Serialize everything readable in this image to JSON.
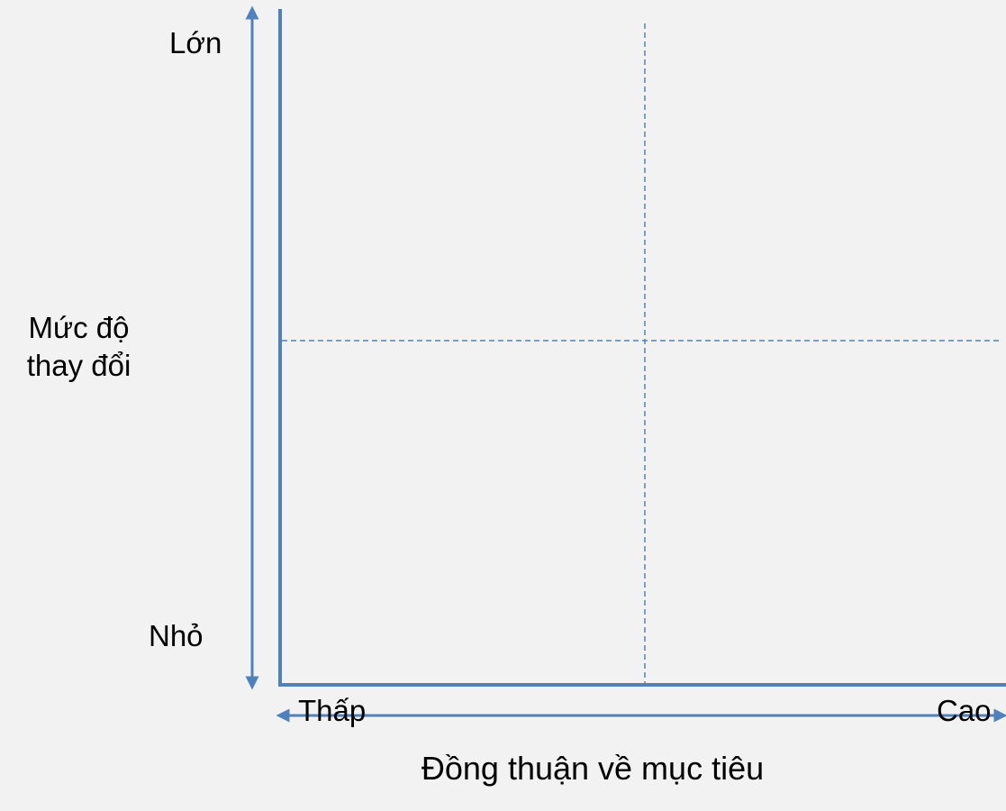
{
  "colors": {
    "background": "#f2f2f2",
    "axis": "#4f81bd",
    "arrow": "#4f81bd",
    "divider": "#4f81bd",
    "text": "#000000"
  },
  "y_axis": {
    "high_label": "Lớn",
    "low_label": "Nhỏ",
    "title_line1": "Mức độ",
    "title_line2": "thay đổi"
  },
  "x_axis": {
    "low_label": "Thấp",
    "high_label": "Cao",
    "title": "Đồng thuận về mục tiêu"
  },
  "dividers": {
    "vertical_style": "dashed",
    "horizontal_style": "dashed"
  }
}
